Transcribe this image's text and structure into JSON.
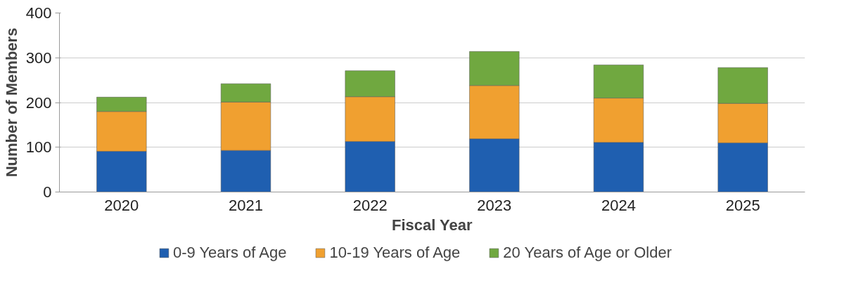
{
  "chart_data": {
    "type": "bar",
    "stacked": true,
    "xlabel": "Fiscal Year",
    "ylabel": "Number of Members",
    "categories": [
      "2020",
      "2021",
      "2022",
      "2023",
      "2024",
      "2025"
    ],
    "series": [
      {
        "name": "0-9 Years of Age",
        "color": "#1f5fb0",
        "values": [
          91,
          93,
          113,
          119,
          111,
          110
        ]
      },
      {
        "name": "10-19 Years of Age",
        "color": "#f0a030",
        "values": [
          89,
          108,
          100,
          119,
          99,
          88
        ]
      },
      {
        "name": "20 Years of Age or Older",
        "color": "#70a840",
        "values": [
          32,
          41,
          58,
          76,
          74,
          80
        ]
      }
    ],
    "ylim": [
      0,
      400
    ],
    "yticks": [
      0,
      100,
      200,
      300,
      400
    ],
    "grid": "y",
    "legend": "bottom"
  }
}
